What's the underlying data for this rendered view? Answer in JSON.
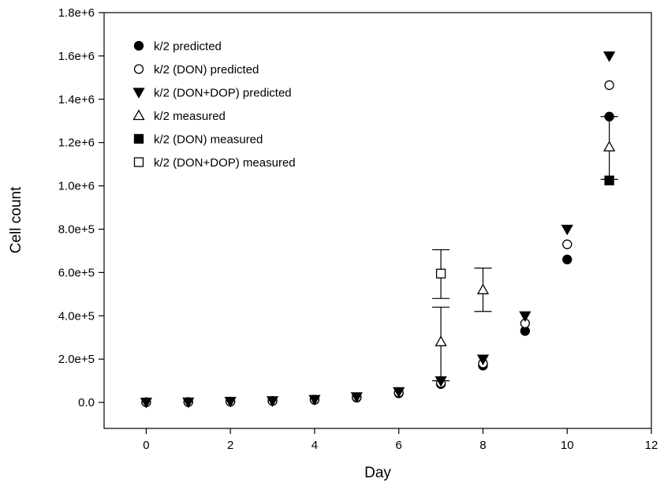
{
  "chart_data": {
    "type": "scatter",
    "xlabel": "Day",
    "ylabel": "Cell count",
    "xlim": [
      -1,
      12
    ],
    "ylim": [
      -120000.0,
      1800000.0
    ],
    "x_ticks": [
      0,
      2,
      4,
      6,
      8,
      10,
      12
    ],
    "x_tick_labels": [
      "0",
      "2",
      "4",
      "6",
      "8",
      "10",
      "12"
    ],
    "y_ticks": [
      0,
      200000,
      400000,
      600000,
      800000,
      1000000,
      1200000,
      1400000,
      1600000,
      1800000
    ],
    "y_tick_labels": [
      "0.0",
      "2.0e+5",
      "4.0e+5",
      "6.0e+5",
      "8.0e+5",
      "1.0e+6",
      "1.2e+6",
      "1.4e+6",
      "1.6e+6",
      "1.8e+6"
    ],
    "grid": false,
    "legend_position": "top-left",
    "series": [
      {
        "name": "k/2 predicted",
        "marker": "circle-filled",
        "points": [
          [
            0,
            1000
          ],
          [
            1,
            2000
          ],
          [
            2,
            4000
          ],
          [
            3,
            7000
          ],
          [
            4,
            12000
          ],
          [
            5,
            22000
          ],
          [
            6,
            42000
          ],
          [
            7,
            85000
          ],
          [
            8,
            170000
          ],
          [
            9,
            330000
          ],
          [
            10,
            660000
          ],
          [
            11,
            1320000
          ]
        ]
      },
      {
        "name": "k/2 (DON) predicted",
        "marker": "circle-open",
        "points": [
          [
            0,
            1000
          ],
          [
            1,
            2000
          ],
          [
            2,
            4000
          ],
          [
            3,
            7000
          ],
          [
            4,
            13000
          ],
          [
            5,
            24000
          ],
          [
            6,
            45000
          ],
          [
            7,
            90000
          ],
          [
            8,
            180000
          ],
          [
            9,
            365000
          ],
          [
            10,
            730000
          ],
          [
            11,
            1465000
          ]
        ]
      },
      {
        "name": "k/2 (DON+DOP) predicted",
        "marker": "triangle-down-filled",
        "points": [
          [
            0,
            1000
          ],
          [
            1,
            2000
          ],
          [
            2,
            5000
          ],
          [
            3,
            8000
          ],
          [
            4,
            14000
          ],
          [
            5,
            26000
          ],
          [
            6,
            50000
          ],
          [
            7,
            100000
          ],
          [
            8,
            200000
          ],
          [
            9,
            400000
          ],
          [
            10,
            800000
          ],
          [
            11,
            1600000
          ]
        ]
      },
      {
        "name": "k/2 measured",
        "marker": "triangle-up-open",
        "points": [
          [
            7,
            280000
          ],
          [
            8,
            520000
          ],
          [
            11,
            1180000
          ]
        ],
        "error": [
          [
            7,
            100000,
            440000
          ],
          [
            8,
            420000,
            620000
          ],
          [
            11,
            1030000,
            1320000
          ]
        ]
      },
      {
        "name": "k/2 (DON) measured",
        "marker": "square-filled",
        "points": [
          [
            11,
            1025000
          ]
        ]
      },
      {
        "name": "k/2 (DON+DOP) measured",
        "marker": "square-open",
        "points": [
          [
            7,
            595000
          ]
        ],
        "error": [
          [
            7,
            480000,
            705000
          ]
        ]
      }
    ]
  }
}
